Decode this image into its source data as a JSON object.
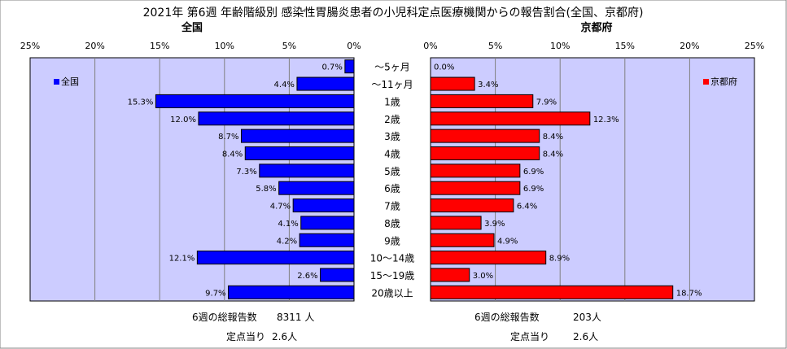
{
  "page": {
    "title": "2021年 第6週 年齢階級別 感染性胃腸炎患者の小児科定点医療機関からの報告割合(全国、京都府)"
  },
  "colors": {
    "plot_bg": "#ccccff",
    "national_bar": "#0000ff",
    "kyoto_bar": "#ff0000",
    "bar_stroke": "#000000",
    "grid": "#808080"
  },
  "footer": {
    "national": {
      "total_label": "6週の総報告数",
      "total_value": "8311 人",
      "per_label": "定点当り",
      "per_value": "2.6人"
    },
    "kyoto": {
      "total_label": "6週の総報告数",
      "total_value": "203人",
      "per_label": "定点当り",
      "per_value": "2.6人"
    }
  },
  "chart_data": [
    {
      "type": "bar",
      "orientation": "horizontal",
      "direction": "right-to-left",
      "title": "全国",
      "legend": "全国",
      "legend_position": "top-left",
      "xlim": [
        0,
        25
      ],
      "ticks": [
        "0%",
        "5%",
        "10%",
        "15%",
        "20%",
        "25%"
      ],
      "grid": true,
      "categories": [
        "～5ヶ月",
        "～11ヶ月",
        "1歳",
        "2歳",
        "3歳",
        "4歳",
        "5歳",
        "6歳",
        "7歳",
        "8歳",
        "9歳",
        "10～14歳",
        "15～19歳",
        "20歳以上"
      ],
      "values": [
        0.7,
        4.4,
        15.3,
        12.0,
        8.7,
        8.4,
        7.3,
        5.8,
        4.7,
        4.1,
        4.2,
        12.1,
        2.6,
        9.7
      ],
      "labels": [
        "0.7%",
        "4.4%",
        "15.3%",
        "12.0%",
        "8.7%",
        "8.4%",
        "7.3%",
        "5.8%",
        "4.7%",
        "4.1%",
        "4.2%",
        "12.1%",
        "2.6%",
        "9.7%"
      ]
    },
    {
      "type": "bar",
      "orientation": "horizontal",
      "direction": "left-to-right",
      "title": "京都府",
      "legend": "京都府",
      "legend_position": "top-right",
      "xlim": [
        0,
        25
      ],
      "ticks": [
        "0%",
        "5%",
        "10%",
        "15%",
        "20%",
        "25%"
      ],
      "grid": true,
      "categories": [
        "～5ヶ月",
        "～11ヶ月",
        "1歳",
        "2歳",
        "3歳",
        "4歳",
        "5歳",
        "6歳",
        "7歳",
        "8歳",
        "9歳",
        "10～14歳",
        "15～19歳",
        "20歳以上"
      ],
      "values": [
        0.0,
        3.4,
        7.9,
        12.3,
        8.4,
        8.4,
        6.9,
        6.9,
        6.4,
        3.9,
        4.9,
        8.9,
        3.0,
        18.7
      ],
      "labels": [
        "0.0%",
        "3.4%",
        "7.9%",
        "12.3%",
        "8.4%",
        "8.4%",
        "6.9%",
        "6.9%",
        "6.4%",
        "3.9%",
        "4.9%",
        "8.9%",
        "3.0%",
        "18.7%"
      ]
    }
  ]
}
